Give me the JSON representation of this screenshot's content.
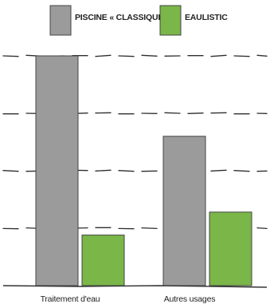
{
  "chart_data": {
    "type": "bar",
    "title": "",
    "xlabel": "",
    "ylabel": "",
    "categories": [
      "Traitement d'eau",
      "Autres usages"
    ],
    "series": [
      {
        "name": "PISCINE « CLASSIQUE »",
        "color": "#9b9b9b",
        "values": [
          100,
          65
        ]
      },
      {
        "name": "EAULISTIC",
        "color": "#7ab648",
        "values": [
          22,
          32
        ]
      }
    ],
    "ylim": [
      0,
      100
    ],
    "yticks": [
      25,
      50,
      75,
      100
    ],
    "grid": true,
    "grid_style": "dashed",
    "legend": "top-center"
  }
}
